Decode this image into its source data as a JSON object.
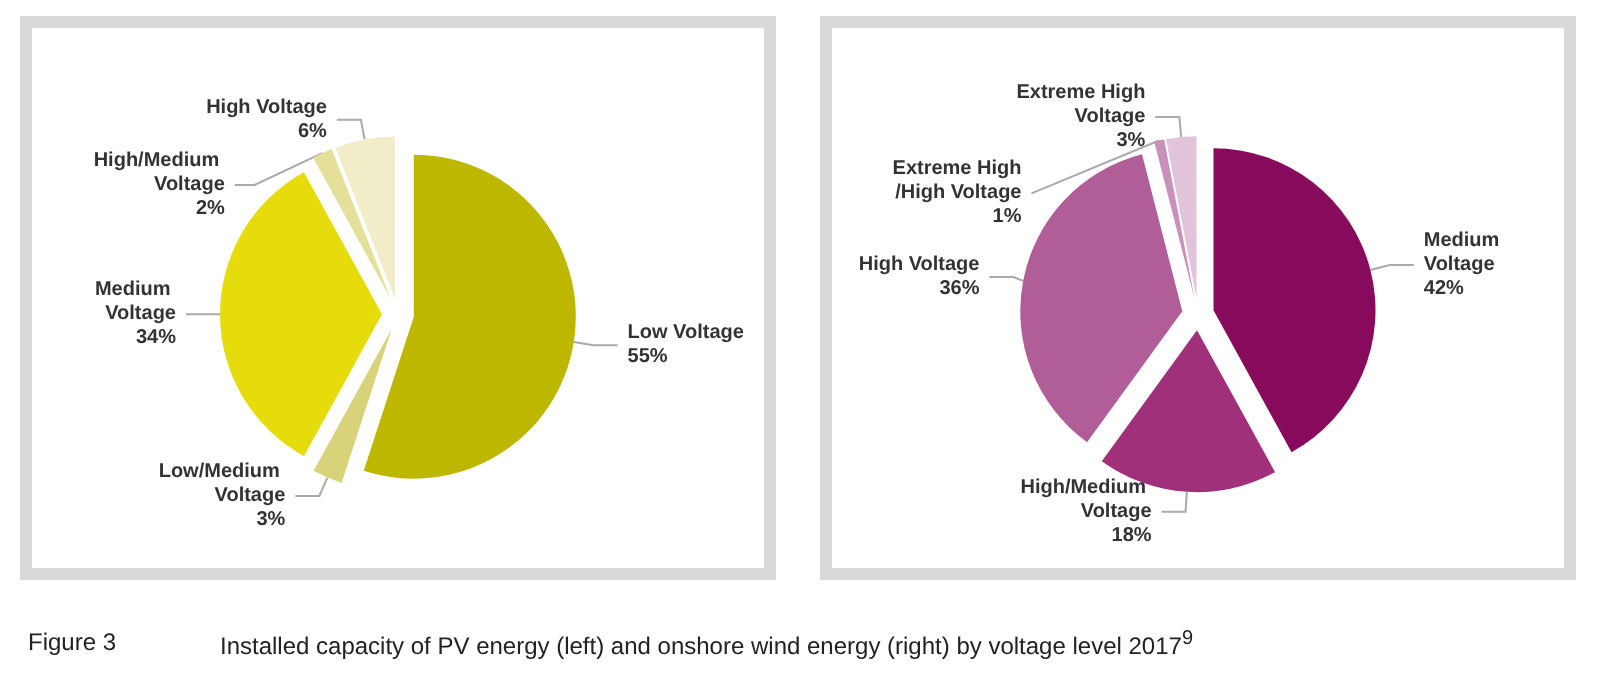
{
  "chart_data": [
    {
      "type": "pie",
      "categories": [
        "Low Voltage",
        "Low/Medium Voltage",
        "Medium Voltage",
        "High/Medium Voltage",
        "High Voltage"
      ],
      "values": [
        55,
        3,
        34,
        2,
        6
      ],
      "colors": [
        "#bdb700",
        "#d8d37a",
        "#e6dc0c",
        "#e4e09a",
        "#f1edc8"
      ],
      "value_labels": [
        "55%",
        "3%",
        "34%",
        "2%",
        "6%"
      ],
      "legend": false,
      "annotations": [
        "Figure 3",
        "Installed capacity of PV energy (left) and onshore wind energy (right) by voltage level 2017$^{9}$"
      ]
    },
    {
      "type": "pie",
      "categories": [
        "Medium Voltage",
        "High/Medium Voltage",
        "High Voltage",
        "Extreme High/High Voltage",
        "Extreme High Voltage"
      ],
      "values": [
        42,
        18,
        36,
        1,
        3
      ],
      "colors": [
        "#880a5c",
        "#a0307a",
        "#b05d98",
        "#c890ba",
        "#e2c4da"
      ],
      "value_labels": [
        "42%",
        "18%",
        "36%",
        "1%",
        "3%"
      ],
      "legend": false
    }
  ]
}
